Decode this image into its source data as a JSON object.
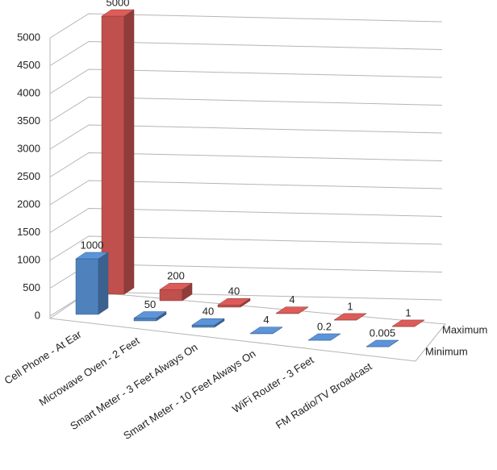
{
  "chart_data": {
    "type": "bar3d",
    "categories": [
      "Cell Phone - At Ear",
      "Microwave Oven - 2 Feet",
      "Smart Meter - 3 Feet Always On",
      "Smart Meter - 10 Feet Always On",
      "WiFi Router - 3 Feet",
      "FM Radio/TV Broadcast"
    ],
    "series": [
      {
        "name": "Minimum",
        "color": "#4f81bd",
        "values": [
          1000,
          50,
          40,
          4,
          0.2,
          0.005
        ]
      },
      {
        "name": "Maximum",
        "color": "#c0504d",
        "values": [
          5000,
          200,
          40,
          4,
          1,
          1
        ]
      }
    ],
    "ylim": [
      0,
      5000
    ],
    "yticks": [
      0,
      500,
      1000,
      1500,
      2000,
      2500,
      3000,
      3500,
      4000,
      4500,
      5000
    ],
    "grid": true
  }
}
